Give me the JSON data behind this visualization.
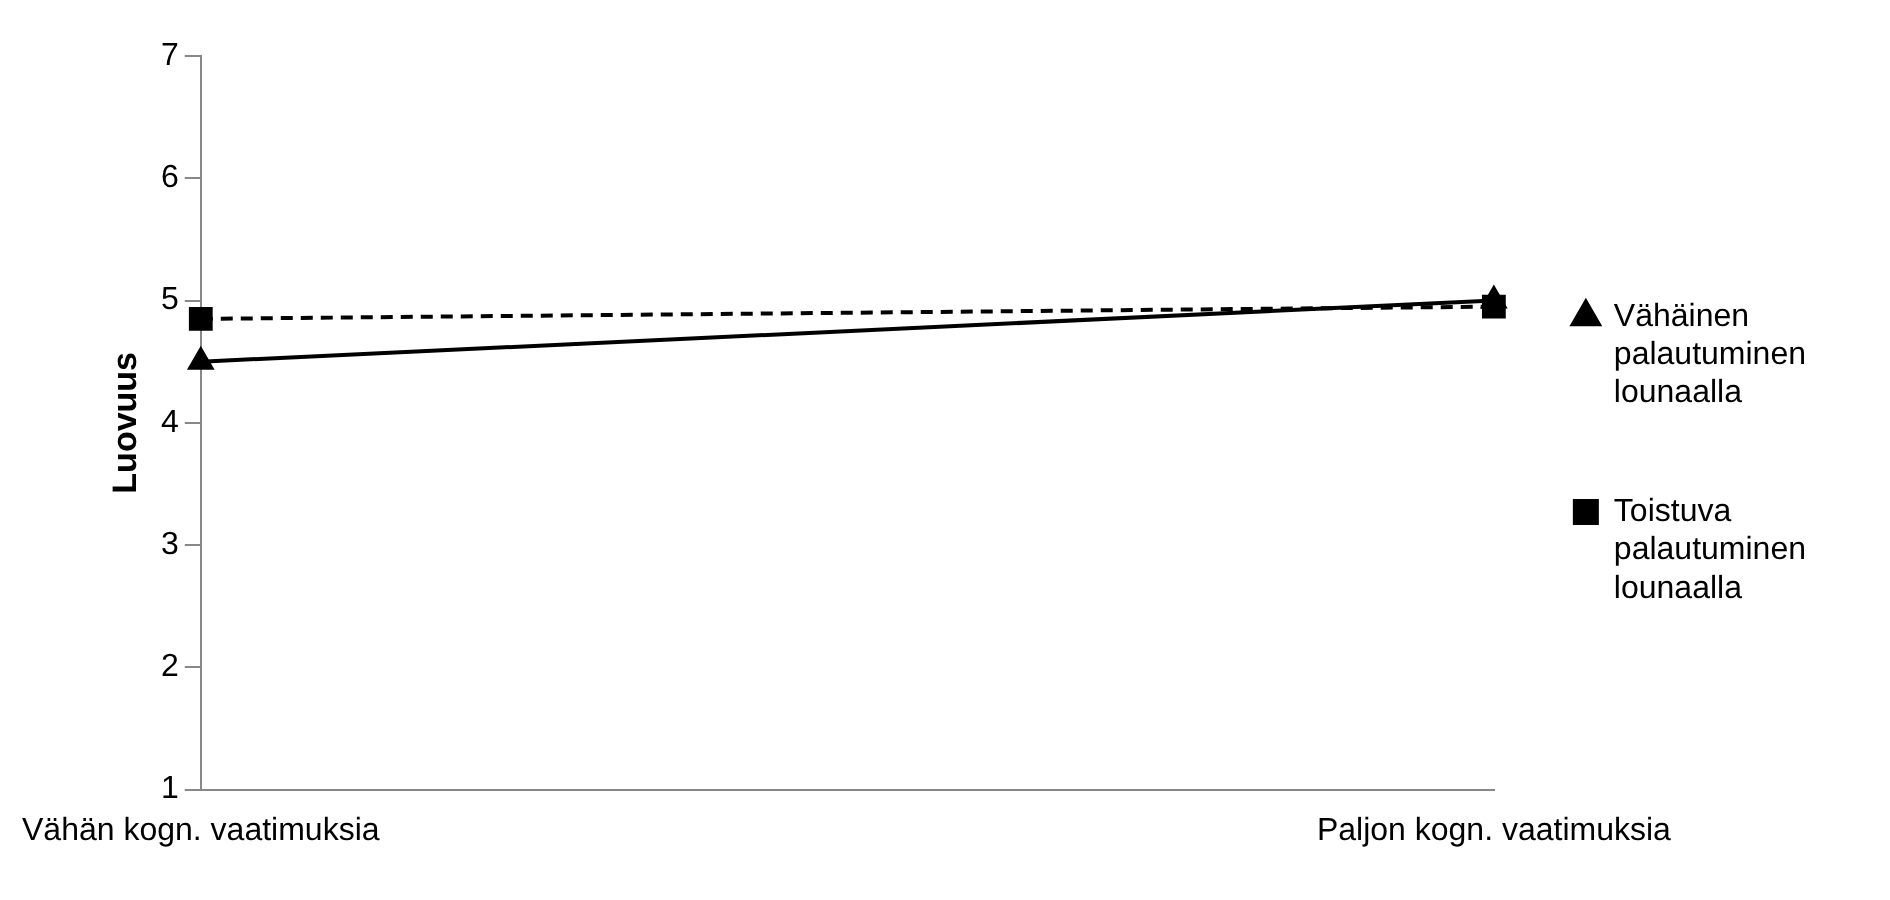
{
  "chart_data": {
    "type": "line",
    "ylabel": "Luovuus",
    "categories": [
      "Vähän kogn. vaatimuksia",
      "Paljon kogn. vaatimuksia"
    ],
    "ylim": [
      1,
      7
    ],
    "yticks": [
      1,
      2,
      3,
      4,
      5,
      6,
      7
    ],
    "grid": false,
    "legend": "right",
    "series": [
      {
        "name": "Vähäinen palautuminen lounaalla",
        "color": "#000000",
        "values": [
          4.5,
          5.0
        ],
        "marker": "triangle",
        "line_style": "solid"
      },
      {
        "name": "Toistuva palautuminen lounaalla",
        "color": "#000000",
        "values": [
          4.85,
          4.95
        ],
        "marker": "square",
        "line_style": "dashed"
      }
    ]
  }
}
